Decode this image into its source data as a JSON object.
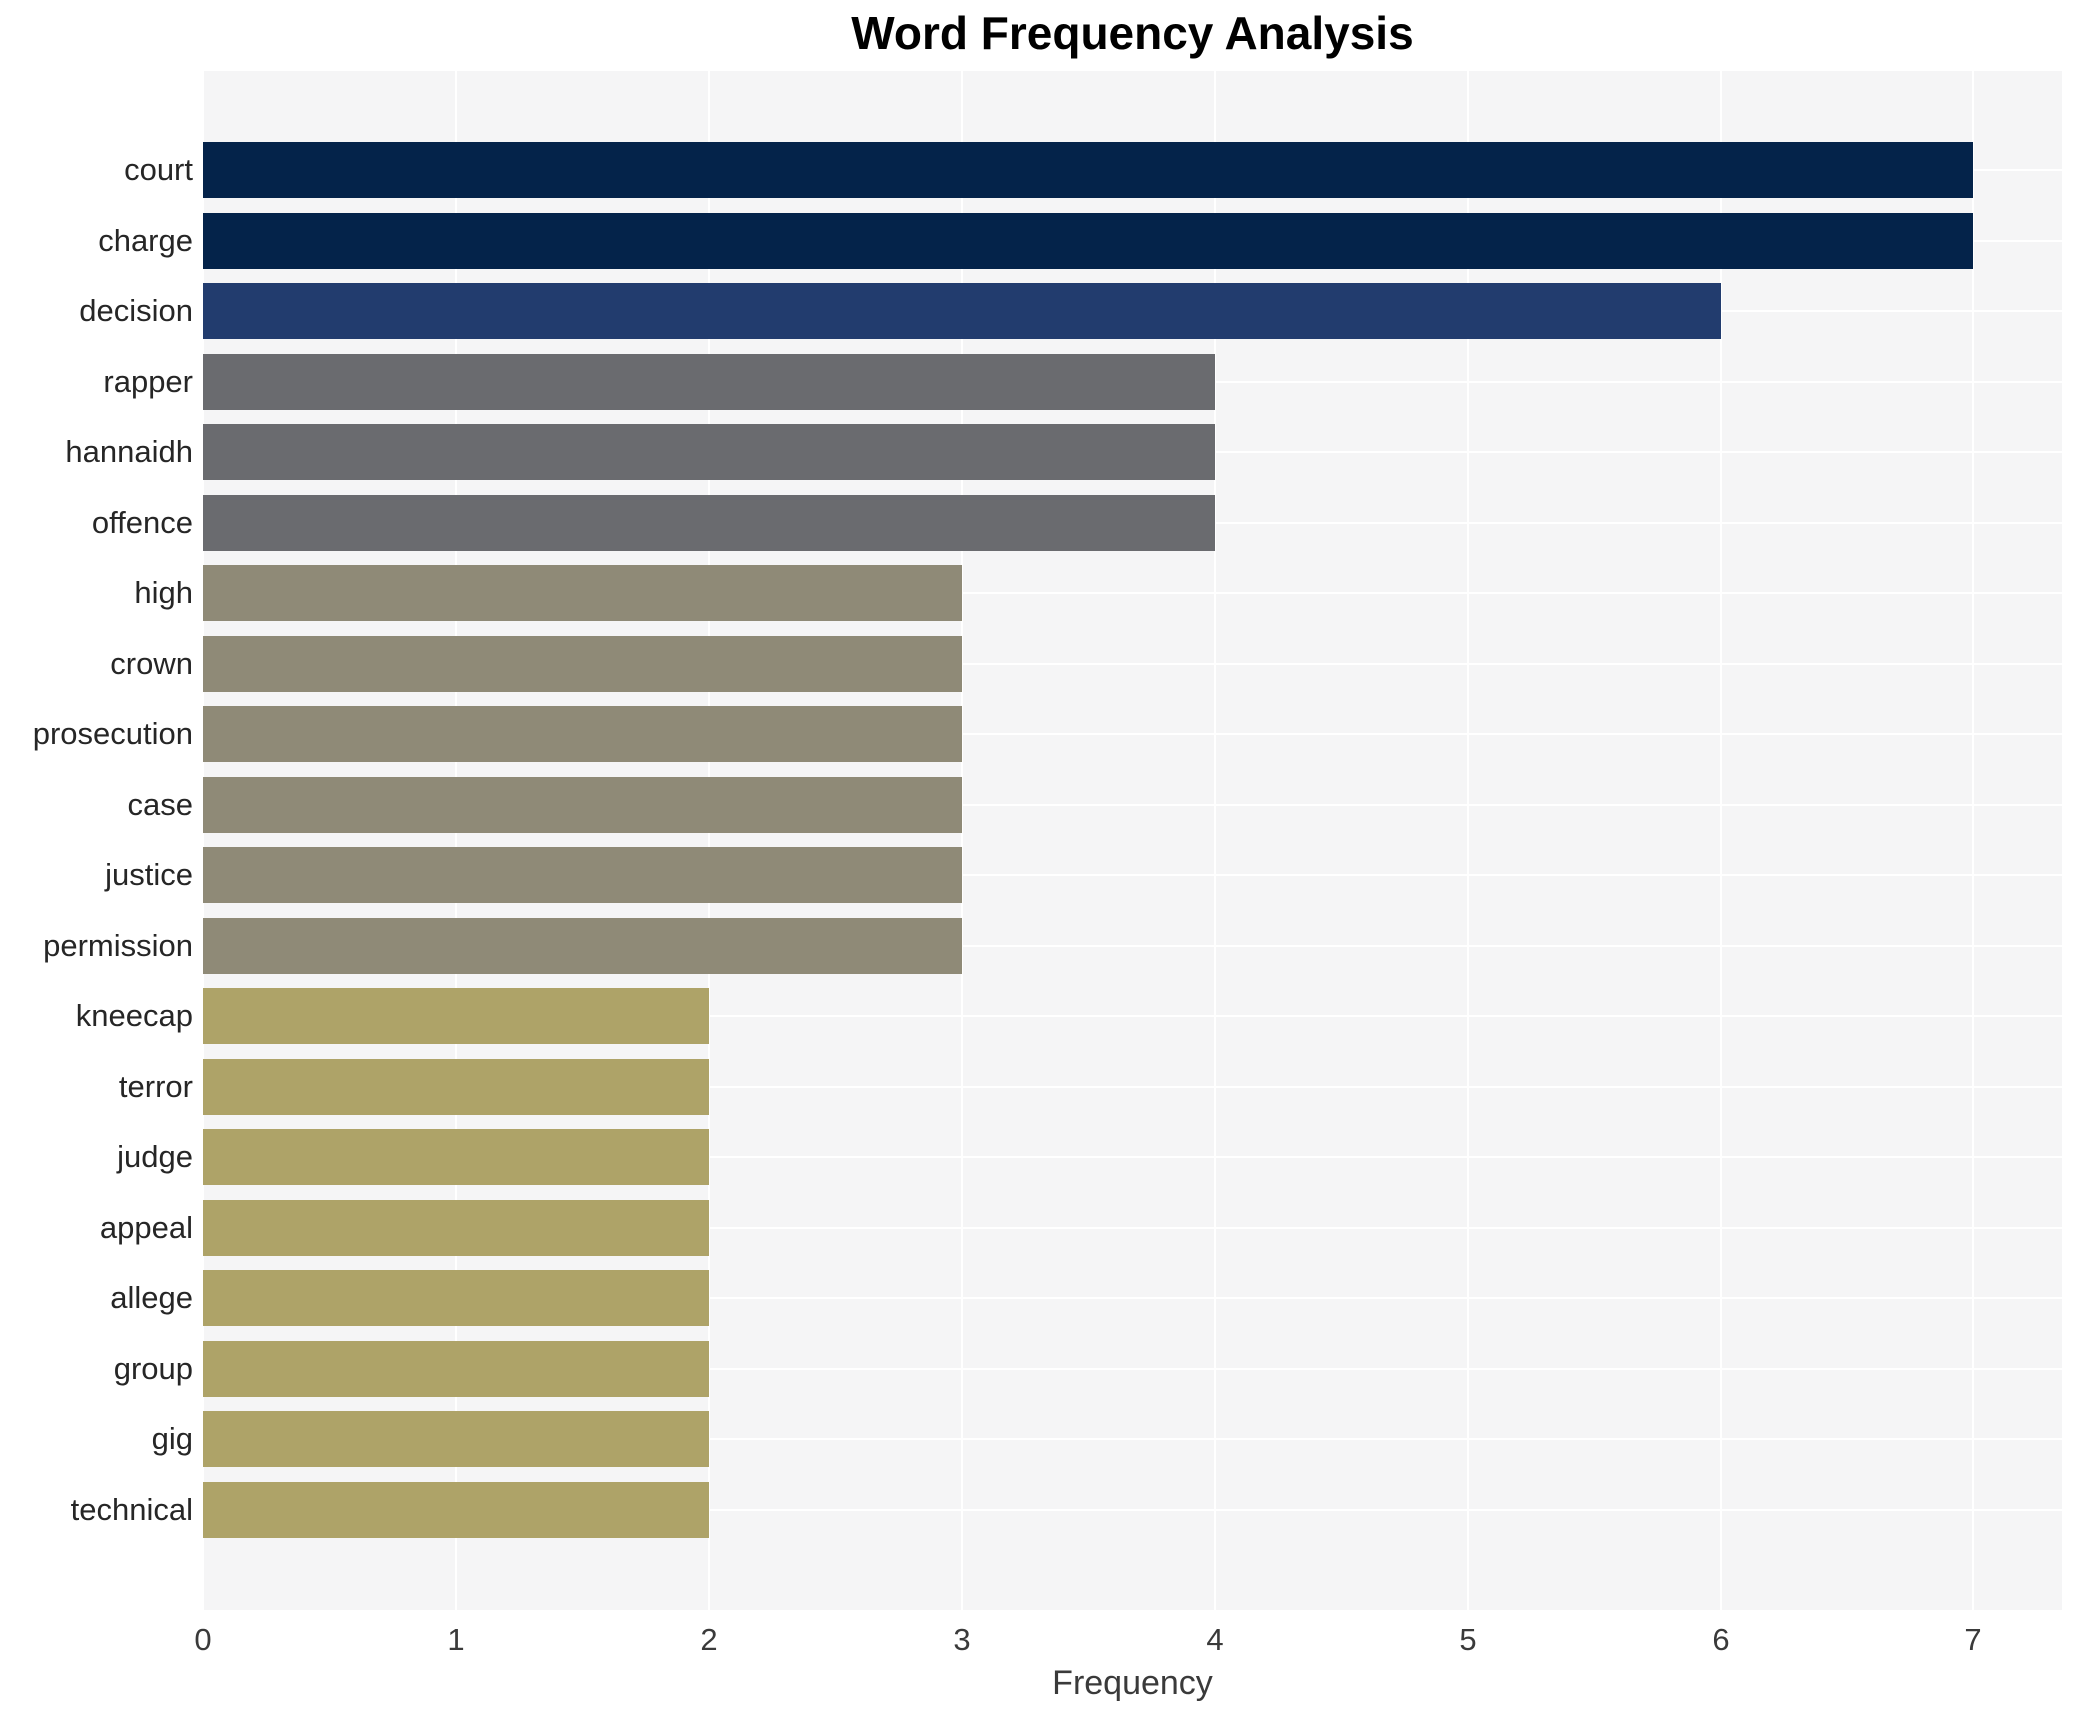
{
  "chart_data": {
    "type": "bar",
    "orientation": "horizontal",
    "title": "Word Frequency Analysis",
    "xlabel": "Frequency",
    "ylabel": "",
    "categories": [
      "court",
      "charge",
      "decision",
      "rapper",
      "hannaidh",
      "offence",
      "high",
      "crown",
      "prosecution",
      "case",
      "justice",
      "permission",
      "kneecap",
      "terror",
      "judge",
      "appeal",
      "allege",
      "group",
      "gig",
      "technical"
    ],
    "values": [
      7,
      7,
      6,
      4,
      4,
      4,
      3,
      3,
      3,
      3,
      3,
      3,
      2,
      2,
      2,
      2,
      2,
      2,
      2,
      2
    ],
    "bar_colors": [
      "#04234a",
      "#04234a",
      "#223c6e",
      "#6a6b6f",
      "#6a6b6f",
      "#6a6b6f",
      "#8f8a77",
      "#8f8a77",
      "#8f8a77",
      "#8f8a77",
      "#8f8a77",
      "#8f8a77",
      "#aea368",
      "#aea368",
      "#aea368",
      "#aea368",
      "#aea368",
      "#aea368",
      "#aea368",
      "#aea368"
    ],
    "xlim": [
      0,
      7.35
    ],
    "xticks": [
      0,
      1,
      2,
      3,
      4,
      5,
      6,
      7
    ],
    "grid": "on",
    "gridline_color": "#ffffff",
    "plot_background_color": "#f5f5f6",
    "figure_background_color": "#ffffff",
    "legend": "none"
  }
}
